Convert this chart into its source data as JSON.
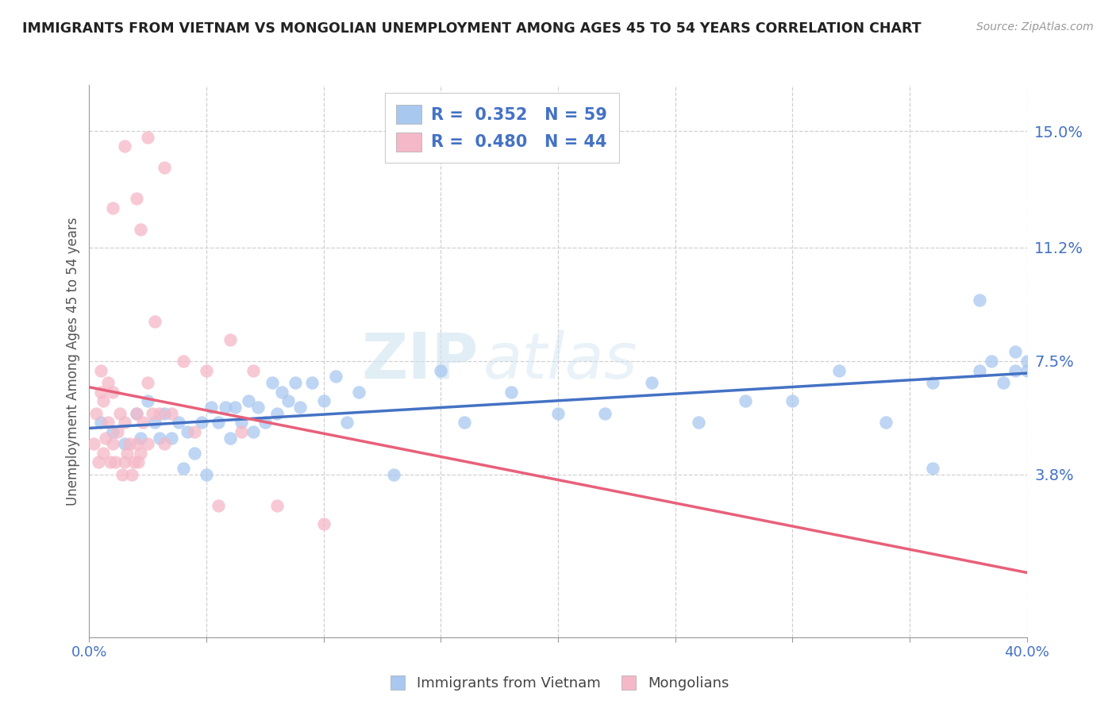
{
  "title": "IMMIGRANTS FROM VIETNAM VS MONGOLIAN UNEMPLOYMENT AMONG AGES 45 TO 54 YEARS CORRELATION CHART",
  "source": "Source: ZipAtlas.com",
  "ylabel": "Unemployment Among Ages 45 to 54 years",
  "xlim": [
    0.0,
    0.4
  ],
  "ylim": [
    -0.015,
    0.165
  ],
  "yticks": [
    0.038,
    0.075,
    0.112,
    0.15
  ],
  "ytick_labels": [
    "3.8%",
    "7.5%",
    "11.2%",
    "15.0%"
  ],
  "xticks": [
    0.0,
    0.05,
    0.1,
    0.15,
    0.2,
    0.25,
    0.3,
    0.35,
    0.4
  ],
  "xtick_labels_show": [
    "0.0%",
    "",
    "",
    "",
    "",
    "",
    "",
    "",
    "40.0%"
  ],
  "legend_blue_r": "0.352",
  "legend_blue_n": "59",
  "legend_pink_r": "0.480",
  "legend_pink_n": "44",
  "blue_color": "#a8c8f0",
  "pink_color": "#f5b8c8",
  "blue_line_color": "#4472c4",
  "pink_line_color": "#e8607a",
  "watermark_zip": "ZIP",
  "watermark_atlas": "atlas",
  "blue_scatter_x": [
    0.005,
    0.01,
    0.015,
    0.02,
    0.022,
    0.025,
    0.028,
    0.03,
    0.032,
    0.035,
    0.038,
    0.04,
    0.042,
    0.045,
    0.048,
    0.05,
    0.052,
    0.055,
    0.058,
    0.06,
    0.062,
    0.065,
    0.068,
    0.07,
    0.072,
    0.075,
    0.078,
    0.08,
    0.082,
    0.085,
    0.088,
    0.09,
    0.095,
    0.1,
    0.105,
    0.11,
    0.115,
    0.13,
    0.15,
    0.16,
    0.18,
    0.2,
    0.22,
    0.24,
    0.26,
    0.28,
    0.3,
    0.32,
    0.34,
    0.36,
    0.36,
    0.38,
    0.38,
    0.39,
    0.395,
    0.4,
    0.4,
    0.395,
    0.385
  ],
  "blue_scatter_y": [
    0.055,
    0.052,
    0.048,
    0.058,
    0.05,
    0.062,
    0.055,
    0.05,
    0.058,
    0.05,
    0.055,
    0.04,
    0.052,
    0.045,
    0.055,
    0.038,
    0.06,
    0.055,
    0.06,
    0.05,
    0.06,
    0.055,
    0.062,
    0.052,
    0.06,
    0.055,
    0.068,
    0.058,
    0.065,
    0.062,
    0.068,
    0.06,
    0.068,
    0.062,
    0.07,
    0.055,
    0.065,
    0.038,
    0.072,
    0.055,
    0.065,
    0.058,
    0.058,
    0.068,
    0.055,
    0.062,
    0.062,
    0.072,
    0.055,
    0.068,
    0.04,
    0.072,
    0.095,
    0.068,
    0.072,
    0.072,
    0.075,
    0.078,
    0.075
  ],
  "pink_scatter_x": [
    0.002,
    0.003,
    0.004,
    0.005,
    0.005,
    0.006,
    0.006,
    0.007,
    0.008,
    0.008,
    0.009,
    0.01,
    0.01,
    0.011,
    0.012,
    0.013,
    0.014,
    0.015,
    0.015,
    0.016,
    0.017,
    0.018,
    0.019,
    0.02,
    0.02,
    0.021,
    0.022,
    0.023,
    0.025,
    0.025,
    0.027,
    0.028,
    0.03,
    0.032,
    0.035,
    0.04,
    0.045,
    0.05,
    0.055,
    0.06,
    0.065,
    0.07,
    0.08,
    0.1
  ],
  "pink_scatter_y": [
    0.048,
    0.058,
    0.042,
    0.065,
    0.072,
    0.045,
    0.062,
    0.05,
    0.055,
    0.068,
    0.042,
    0.048,
    0.065,
    0.042,
    0.052,
    0.058,
    0.038,
    0.042,
    0.055,
    0.045,
    0.048,
    0.038,
    0.042,
    0.058,
    0.048,
    0.042,
    0.045,
    0.055,
    0.068,
    0.048,
    0.058,
    0.088,
    0.058,
    0.048,
    0.058,
    0.075,
    0.052,
    0.072,
    0.028,
    0.082,
    0.052,
    0.072,
    0.028,
    0.022
  ],
  "pink_outlier_x": [
    0.01,
    0.015,
    0.02,
    0.022,
    0.025,
    0.032
  ],
  "pink_outlier_y": [
    0.125,
    0.145,
    0.128,
    0.118,
    0.148,
    0.138
  ]
}
